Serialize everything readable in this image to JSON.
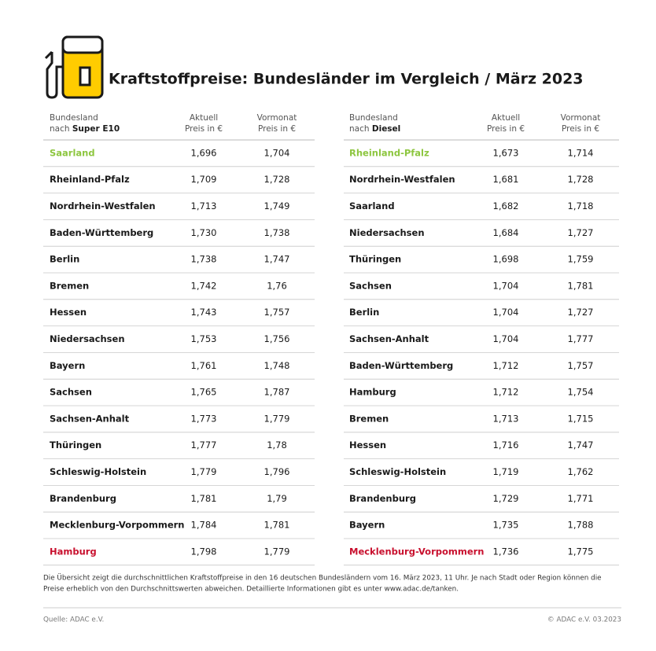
{
  "title": "Kraftstoffpreise: Bundesländer im Vergleich / März 2023",
  "tables": [
    {
      "header": {
        "label": "Bundesland",
        "prefix": "nach",
        "fuel": "Super E10",
        "current": [
          "Aktuell",
          "Preis in €"
        ],
        "previous": [
          "Vormonat",
          "Preis in €"
        ]
      },
      "best_color": "#8dc63f",
      "worst_color": "#c8102e",
      "rows": [
        [
          "Saarland",
          "1,696",
          "1,704"
        ],
        [
          "Rheinland-Pfalz",
          "1,709",
          "1,728"
        ],
        [
          "Nordrhein-Westfalen",
          "1,713",
          "1,749"
        ],
        [
          "Baden-Württemberg",
          "1,730",
          "1,738"
        ],
        [
          "Berlin",
          "1,738",
          "1,747"
        ],
        [
          "Bremen",
          "1,742",
          "1,76"
        ],
        [
          "Hessen",
          "1,743",
          "1,757"
        ],
        [
          "Niedersachsen",
          "1,753",
          "1,756"
        ],
        [
          "Bayern",
          "1,761",
          "1,748"
        ],
        [
          "Sachsen",
          "1,765",
          "1,787"
        ],
        [
          "Sachsen-Anhalt",
          "1,773",
          "1,779"
        ],
        [
          "Thüringen",
          "1,777",
          "1,78"
        ],
        [
          "Schleswig-Holstein",
          "1,779",
          "1,796"
        ],
        [
          "Brandenburg",
          "1,781",
          "1,79"
        ],
        [
          "Mecklenburg-Vorpommern",
          "1,784",
          "1,781"
        ],
        [
          "Hamburg",
          "1,798",
          "1,779"
        ]
      ]
    },
    {
      "header": {
        "label": "Bundesland",
        "prefix": "nach",
        "fuel": "Diesel",
        "current": [
          "Aktuell",
          "Preis in €"
        ],
        "previous": [
          "Vormonat",
          "Preis in €"
        ]
      },
      "best_color": "#8dc63f",
      "worst_color": "#c8102e",
      "rows": [
        [
          "Rheinland-Pfalz",
          "1,673",
          "1,714"
        ],
        [
          "Nordrhein-Westfalen",
          "1,681",
          "1,728"
        ],
        [
          "Saarland",
          "1,682",
          "1,718"
        ],
        [
          "Niedersachsen",
          "1,684",
          "1,727"
        ],
        [
          "Thüringen",
          "1,698",
          "1,759"
        ],
        [
          "Sachsen",
          "1,704",
          "1,781"
        ],
        [
          "Berlin",
          "1,704",
          "1,727"
        ],
        [
          "Sachsen-Anhalt",
          "1,704",
          "1,777"
        ],
        [
          "Baden-Württemberg",
          "1,712",
          "1,757"
        ],
        [
          "Hamburg",
          "1,712",
          "1,754"
        ],
        [
          "Bremen",
          "1,713",
          "1,715"
        ],
        [
          "Hessen",
          "1,716",
          "1,747"
        ],
        [
          "Schleswig-Holstein",
          "1,719",
          "1,762"
        ],
        [
          "Brandenburg",
          "1,729",
          "1,771"
        ],
        [
          "Bayern",
          "1,735",
          "1,788"
        ],
        [
          "Mecklenburg-Vorpommern",
          "1,736",
          "1,775"
        ]
      ]
    }
  ],
  "footnote": [
    "Die Übersicht zeigt die durchschnittlichen Kraftstoffpreise in den 16 deutschen Bundesländern vom 16. März 2023, 11 Uhr. Je nach Stadt oder Region können die",
    "Preise erheblich von den Durchschnittswerten abweichen. Detaillierte Informationen gibt es unter www.adac.de/tanken."
  ],
  "source": "Quelle: ADAC e.V.",
  "copyright": "© ADAC e.V. 03.2023"
}
